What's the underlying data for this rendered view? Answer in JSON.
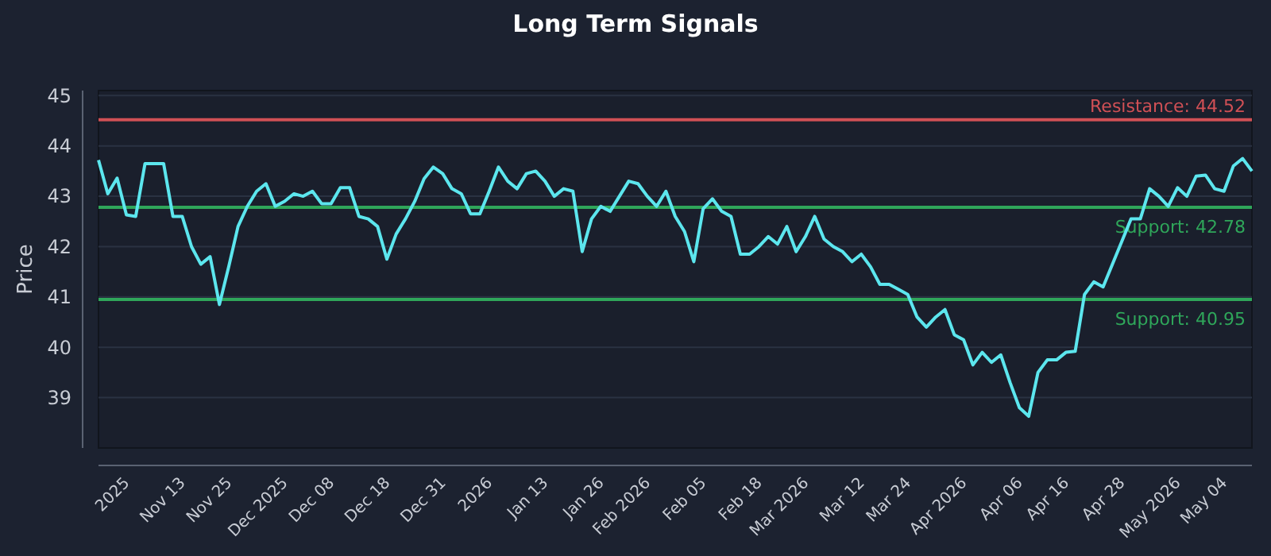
{
  "chart_data": {
    "type": "line",
    "title": "Long Term Signals",
    "ylabel": "Price",
    "categories": [
      null,
      null,
      null,
      "2025",
      null,
      null,
      null,
      null,
      null,
      "Nov 13",
      null,
      null,
      null,
      null,
      "Nov 25",
      null,
      null,
      null,
      null,
      null,
      "Dec 2025",
      null,
      null,
      null,
      null,
      "Dec 08",
      null,
      null,
      null,
      null,
      null,
      "Dec 18",
      null,
      null,
      null,
      null,
      null,
      "Dec 31",
      null,
      null,
      null,
      null,
      "2026",
      null,
      null,
      null,
      null,
      null,
      "Jan 13",
      null,
      null,
      null,
      null,
      null,
      "Jan 26",
      null,
      null,
      null,
      null,
      "Feb 2026",
      null,
      null,
      null,
      null,
      null,
      "Feb 05",
      null,
      null,
      null,
      null,
      null,
      "Feb 18",
      null,
      null,
      null,
      null,
      "Mar 2026",
      null,
      null,
      null,
      null,
      null,
      "Mar 12",
      null,
      null,
      null,
      null,
      "Mar 24",
      null,
      null,
      null,
      null,
      null,
      "Apr 2026",
      null,
      null,
      null,
      null,
      null,
      "Apr 06",
      null,
      null,
      null,
      null,
      "Apr 16",
      null,
      null,
      null,
      null,
      null,
      "Apr 28",
      null,
      null,
      null,
      null,
      null,
      "May 2026",
      null,
      null,
      null,
      null,
      "May 04",
      null,
      null,
      null
    ],
    "series": [
      {
        "color": "#5ce6ee",
        "values": [
          43.72,
          43.05,
          43.36,
          42.63,
          42.6,
          43.65,
          43.65,
          43.65,
          42.6,
          42.6,
          42.0,
          41.65,
          41.8,
          40.85,
          41.6,
          42.4,
          42.8,
          43.1,
          43.25,
          42.8,
          42.9,
          43.05,
          43.0,
          43.1,
          42.85,
          42.85,
          43.17,
          43.17,
          42.6,
          42.55,
          42.4,
          41.75,
          42.25,
          42.55,
          42.9,
          43.35,
          43.58,
          43.45,
          43.15,
          43.05,
          42.65,
          42.65,
          43.1,
          43.58,
          43.3,
          43.15,
          43.45,
          43.5,
          43.3,
          43.0,
          43.15,
          43.1,
          41.9,
          42.55,
          42.8,
          42.7,
          43.0,
          43.3,
          43.25,
          43.0,
          42.8,
          43.1,
          42.6,
          42.3,
          41.7,
          42.75,
          42.95,
          42.7,
          42.6,
          41.85,
          41.85,
          42.0,
          42.2,
          42.05,
          42.4,
          41.9,
          42.2,
          42.6,
          42.15,
          42.0,
          41.9,
          41.7,
          41.85,
          41.6,
          41.25,
          41.25,
          41.15,
          41.05,
          40.6,
          40.4,
          40.6,
          40.75,
          40.25,
          40.15,
          39.65,
          39.9,
          39.7,
          39.85,
          39.3,
          38.8,
          38.63,
          39.5,
          39.75,
          39.75,
          39.9,
          39.92,
          41.05,
          41.3,
          41.2,
          41.65,
          42.1,
          42.55,
          42.55,
          43.15,
          43.0,
          42.8,
          43.17,
          43.0,
          43.4,
          43.42,
          43.15,
          43.1,
          43.6,
          43.75,
          43.5
        ]
      }
    ],
    "ylim": [
      38.0,
      45.1
    ],
    "yticks": [
      39,
      40,
      41,
      42,
      43,
      44,
      45
    ],
    "grid": "y",
    "ref_lines": [
      {
        "axis": "y",
        "value": 44.52,
        "label": "Resistance: 44.52",
        "color": "#d05055"
      },
      {
        "axis": "y",
        "value": 42.78,
        "label": "Support: 42.78",
        "color": "#2fa65a"
      },
      {
        "axis": "y",
        "value": 40.95,
        "label": "Support: 40.95",
        "color": "#2fa65a"
      }
    ]
  }
}
